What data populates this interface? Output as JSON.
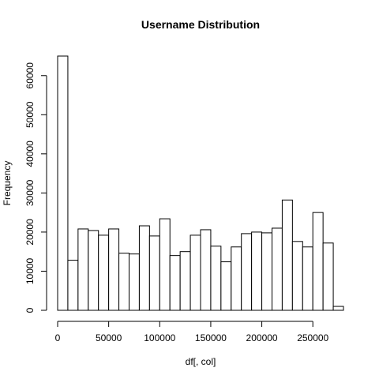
{
  "chart_data": {
    "type": "bar",
    "title": "Username  Distribution",
    "xlabel": "df[, col]",
    "ylabel": "Frequency",
    "bin_width": 10000,
    "bin_starts": [
      0,
      10000,
      20000,
      30000,
      40000,
      50000,
      60000,
      70000,
      80000,
      90000,
      100000,
      110000,
      120000,
      130000,
      140000,
      150000,
      160000,
      170000,
      180000,
      190000,
      200000,
      210000,
      220000,
      230000,
      240000,
      250000,
      260000,
      270000
    ],
    "values": [
      65000,
      12800,
      20800,
      20400,
      19200,
      20800,
      14600,
      14400,
      21600,
      19000,
      23400,
      14000,
      15000,
      19200,
      20600,
      16400,
      12400,
      16200,
      19600,
      20000,
      19800,
      21000,
      28200,
      17600,
      16200,
      25000,
      17200,
      1000
    ],
    "xlim": [
      0,
      280000
    ],
    "ylim": [
      0,
      65000
    ],
    "x_ticks": [
      0,
      50000,
      100000,
      150000,
      200000,
      250000
    ],
    "y_ticks": [
      0,
      10000,
      20000,
      30000,
      40000,
      50000,
      60000
    ],
    "grid": false,
    "colors": {
      "bar_fill": "#ffffff",
      "bar_stroke": "#000000",
      "axis": "#000000"
    }
  }
}
